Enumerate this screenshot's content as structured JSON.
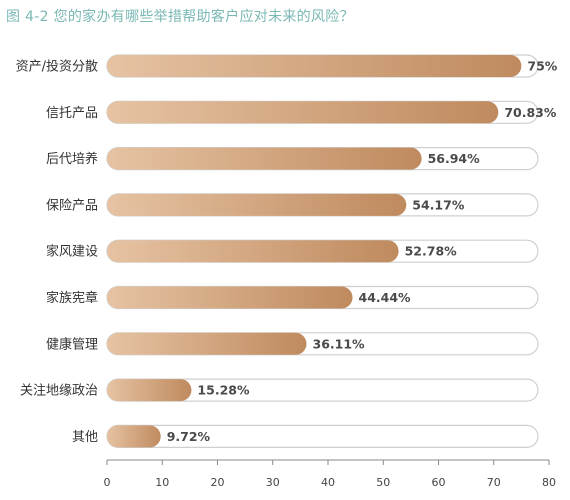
{
  "chart_data": {
    "type": "bar",
    "orientation": "horizontal",
    "title": "图 4-2 您的家办有哪些举措帮助客户应对未来的风险？",
    "categories": [
      "资产/投资分散",
      "信托产品",
      "后代培养",
      "保险产品",
      "家风建设",
      "家族宪章",
      "健康管理",
      "关注地缘政治",
      "其他"
    ],
    "values": [
      75,
      70.83,
      56.94,
      54.17,
      52.78,
      44.44,
      36.11,
      15.28,
      9.72
    ],
    "value_labels": [
      "75%",
      "70.83%",
      "56.94%",
      "54.17%",
      "52.78%",
      "44.44%",
      "36.11%",
      "15.28%",
      "9.72%"
    ],
    "xlim": [
      0,
      80
    ],
    "xticks": [
      0,
      10,
      20,
      30,
      40,
      50,
      60,
      70,
      80
    ],
    "track_max": 78,
    "grid": false,
    "colors": {
      "bar_start": "#e6c3a3",
      "bar_end": "#bf8a5e",
      "track_border": "#cfcfcf",
      "title": "#7ab8b4"
    }
  }
}
